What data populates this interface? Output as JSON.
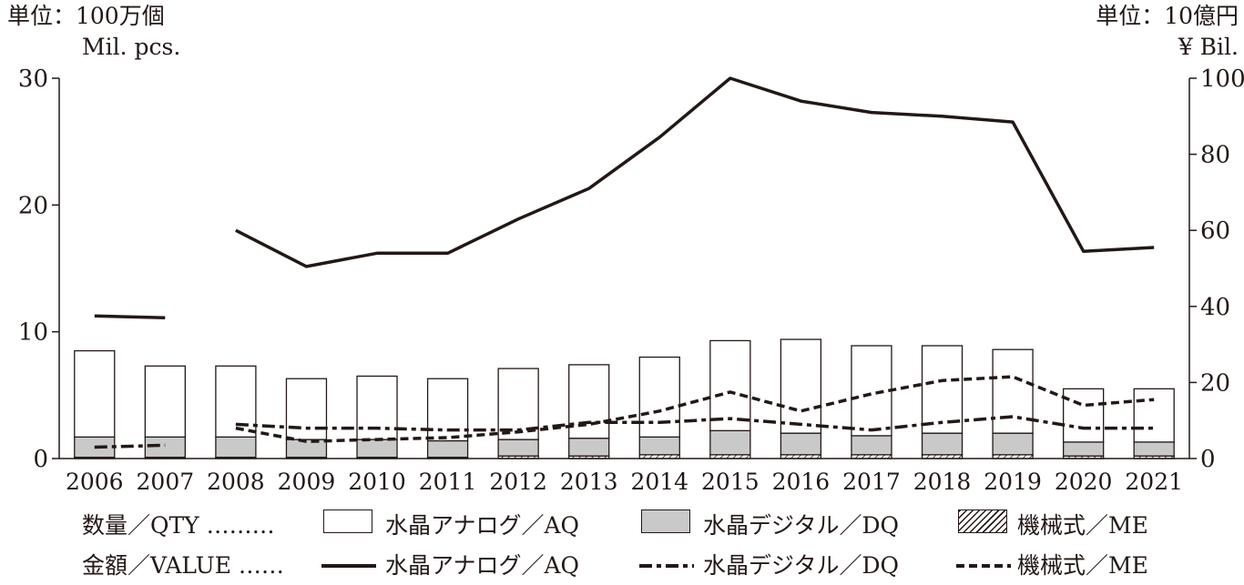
{
  "units": {
    "left_line1": "単位：100万個",
    "left_line2": "Mil. pcs.",
    "right_line1": "単位：10億円",
    "right_line2": "¥ Bil."
  },
  "legend": {
    "qty_label": "数量／QTY ………",
    "value_label": "金額／VALUE ……",
    "aq": "水晶アナログ／AQ",
    "dq": "水晶デジタル／DQ",
    "me": "機械式／ME"
  },
  "colors": {
    "ink": "#231815",
    "dq_fill": "#c9c9c9",
    "aq_fill": "#ffffff"
  },
  "chart_data": {
    "type": "bar",
    "categories": [
      "2006",
      "2007",
      "2008",
      "2009",
      "2010",
      "2011",
      "2012",
      "2013",
      "2014",
      "2015",
      "2016",
      "2017",
      "2018",
      "2019",
      "2020",
      "2021"
    ],
    "left_axis": {
      "label": "Mil. pcs.",
      "ylim": [
        0,
        30
      ],
      "ticks": [
        0,
        10,
        20,
        30
      ]
    },
    "right_axis": {
      "label": "¥ Bil.",
      "ylim": [
        0,
        100
      ],
      "ticks": [
        0,
        20,
        40,
        60,
        80,
        100
      ]
    },
    "quantity_stacked_bars": [
      {
        "name": "機械式／ME",
        "axis": "left",
        "values": [
          0.1,
          0.1,
          0.1,
          0.1,
          0.1,
          0.1,
          0.2,
          0.2,
          0.3,
          0.3,
          0.3,
          0.3,
          0.3,
          0.3,
          0.2,
          0.2
        ]
      },
      {
        "name": "水晶デジタル／DQ",
        "axis": "left",
        "values": [
          1.6,
          1.6,
          1.6,
          1.4,
          1.4,
          1.3,
          1.3,
          1.4,
          1.4,
          1.9,
          1.7,
          1.5,
          1.7,
          1.7,
          1.1,
          1.1
        ]
      },
      {
        "name": "水晶アナログ／AQ",
        "axis": "left",
        "values": [
          6.8,
          5.6,
          5.6,
          4.8,
          5.0,
          4.9,
          5.6,
          5.8,
          6.3,
          7.1,
          7.4,
          7.1,
          6.9,
          6.6,
          4.2,
          4.2
        ]
      }
    ],
    "value_lines": [
      {
        "name": "水晶アナログ／AQ",
        "axis": "right",
        "style": "solid",
        "values": [
          37.5,
          37,
          60,
          50.5,
          54,
          54,
          63,
          71,
          84.5,
          100,
          94,
          91,
          90,
          88.5,
          54.5,
          55.5
        ]
      },
      {
        "name": "水晶デジタル／DQ",
        "axis": "right",
        "style": "dash-dot",
        "values": [
          3,
          3.5,
          9,
          8,
          8,
          7.5,
          7.5,
          9.5,
          9.5,
          10.5,
          9,
          7.5,
          9.5,
          11,
          8,
          8
        ]
      },
      {
        "name": "機械式／ME",
        "axis": "right",
        "style": "dashed",
        "values": [
          null,
          null,
          8,
          4.5,
          5,
          5.5,
          7,
          9,
          12.5,
          17.5,
          12.5,
          17,
          20.5,
          21.5,
          14,
          15.5
        ]
      }
    ],
    "grid": false
  }
}
